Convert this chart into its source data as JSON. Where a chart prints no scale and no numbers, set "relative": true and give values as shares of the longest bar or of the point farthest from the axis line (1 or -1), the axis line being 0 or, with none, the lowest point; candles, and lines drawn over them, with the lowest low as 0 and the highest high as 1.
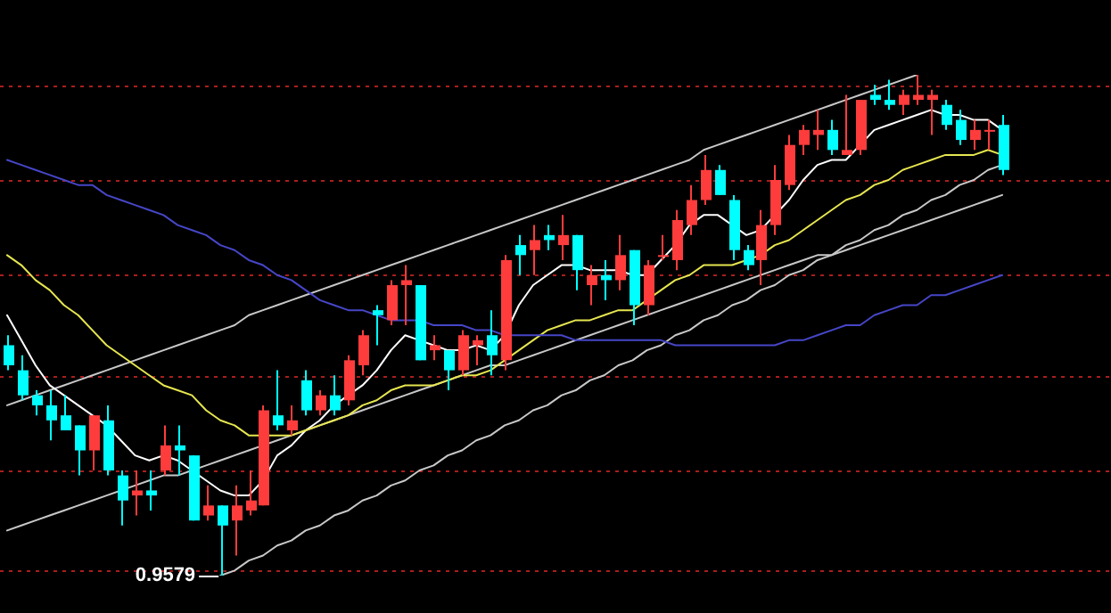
{
  "chart_data": [
    {
      "type": "line",
      "relative": true,
      "marker": "none",
      "ref_lines": [
        {
          "axis": "y",
          "value": 0.01,
          "color": "#aa1e1e",
          "line_style": "dotted"
        },
        {
          "axis": "y",
          "value": 0.21,
          "color": "#aa1e1e",
          "line_style": "dotted"
        },
        {
          "axis": "y",
          "value": 0.4,
          "color": "#aa1e1e",
          "line_style": "dotted"
        },
        {
          "axis": "y",
          "value": 0.6,
          "color": "#aa1e1e",
          "line_style": "dotted"
        },
        {
          "axis": "y",
          "value": 0.79,
          "color": "#aa1e1e",
          "line_style": "dotted"
        },
        {
          "axis": "y",
          "value": 0.98,
          "color": "#aa1e1e",
          "line_style": "dotted"
        }
      ],
      "categories": [
        null,
        null,
        null,
        null,
        null,
        null,
        null,
        null,
        null,
        null,
        null,
        null,
        null,
        null,
        null,
        null,
        null,
        null,
        null,
        null,
        null,
        null,
        null,
        null,
        null,
        null,
        null,
        null,
        null,
        null,
        null,
        null,
        null,
        null,
        null,
        null,
        null,
        null,
        null,
        null,
        null,
        null,
        null,
        null,
        null,
        null,
        null,
        null,
        null,
        null,
        null,
        null,
        null,
        null,
        null,
        null,
        null,
        null,
        null,
        null,
        null,
        null,
        null,
        null,
        null,
        null,
        null,
        null,
        null,
        null,
        null
      ],
      "series": [
        {
          "color": "#4646c8",
          "values": [
            0.83,
            0.82,
            0.81,
            0.8,
            0.79,
            0.78,
            0.78,
            0.76,
            0.75,
            0.74,
            0.73,
            0.72,
            0.7,
            0.69,
            0.68,
            0.66,
            0.65,
            0.63,
            0.62,
            0.6,
            0.59,
            0.57,
            0.55,
            0.54,
            0.53,
            0.53,
            0.52,
            0.51,
            0.51,
            0.51,
            0.5,
            0.5,
            0.5,
            0.49,
            0.49,
            0.48,
            0.48,
            0.48,
            0.48,
            0.48,
            0.47,
            0.47,
            0.47,
            0.47,
            0.47,
            0.47,
            0.47,
            0.46,
            0.46,
            0.46,
            0.46,
            0.46,
            0.46,
            0.46,
            0.46,
            0.47,
            0.47,
            0.48,
            0.49,
            0.5,
            0.5,
            0.52,
            0.53,
            0.54,
            0.54,
            0.56,
            0.56,
            0.57,
            0.58,
            0.59,
            0.6
          ]
        },
        {
          "color": "#e6e650",
          "values": [
            0.64,
            0.62,
            0.59,
            0.57,
            0.54,
            0.52,
            0.49,
            0.46,
            0.44,
            0.42,
            0.4,
            0.38,
            0.37,
            0.36,
            0.33,
            0.31,
            0.3,
            0.28,
            0.28,
            0.28,
            0.28,
            0.29,
            0.3,
            0.31,
            0.32,
            0.34,
            0.35,
            0.37,
            0.38,
            0.38,
            0.38,
            0.39,
            0.4,
            0.4,
            0.41,
            0.43,
            0.45,
            0.47,
            0.49,
            0.5,
            0.51,
            0.51,
            0.52,
            0.53,
            0.53,
            0.55,
            0.57,
            0.59,
            0.6,
            0.62,
            0.62,
            0.62,
            0.63,
            0.64,
            0.66,
            0.67,
            0.69,
            0.71,
            0.73,
            0.75,
            0.76,
            0.78,
            0.79,
            0.81,
            0.82,
            0.83,
            0.84,
            0.84,
            0.84,
            0.85,
            0.84
          ]
        },
        {
          "color": "#ffffff",
          "values": [
            0.52,
            0.47,
            0.42,
            0.38,
            0.36,
            0.34,
            0.32,
            0.3,
            0.27,
            0.24,
            0.23,
            0.24,
            0.23,
            0.21,
            0.19,
            0.17,
            0.16,
            0.16,
            0.19,
            0.24,
            0.26,
            0.29,
            0.31,
            0.34,
            0.36,
            0.38,
            0.41,
            0.45,
            0.48,
            0.47,
            0.46,
            0.45,
            0.45,
            0.46,
            0.45,
            0.48,
            0.54,
            0.58,
            0.6,
            0.62,
            0.62,
            0.61,
            0.61,
            0.61,
            0.6,
            0.6,
            0.63,
            0.66,
            0.7,
            0.72,
            0.72,
            0.7,
            0.68,
            0.69,
            0.72,
            0.75,
            0.79,
            0.82,
            0.83,
            0.83,
            0.86,
            0.89,
            0.9,
            0.91,
            0.92,
            0.93,
            0.92,
            0.92,
            0.91,
            0.91,
            0.89
          ]
        },
        {
          "color": "#c8c8c8",
          "values": [
            0.34,
            0.35,
            0.36,
            0.37,
            0.38,
            0.39,
            0.4,
            0.41,
            0.42,
            0.43,
            0.44,
            0.45,
            0.46,
            0.47,
            0.48,
            0.49,
            0.5,
            0.52,
            0.53,
            0.54,
            0.55,
            0.56,
            0.57,
            0.58,
            0.59,
            0.6,
            0.61,
            0.62,
            0.63,
            0.64,
            0.65,
            0.66,
            0.67,
            0.68,
            0.69,
            0.7,
            0.71,
            0.72,
            0.73,
            0.74,
            0.75,
            0.76,
            0.77,
            0.78,
            0.79,
            0.8,
            0.81,
            0.82,
            0.83,
            0.85,
            0.86,
            0.87,
            0.88,
            0.89,
            0.9,
            0.91,
            0.92,
            0.93,
            0.94,
            0.95,
            0.96,
            0.97,
            0.98,
            0.99,
            1,
            null,
            null,
            null,
            null,
            null,
            null
          ]
        },
        {
          "color": "#c8c8c8",
          "values": [
            0.09,
            0.1,
            0.11,
            0.12,
            0.13,
            0.14,
            0.15,
            0.16,
            0.17,
            0.18,
            0.19,
            0.2,
            0.2,
            0.21,
            0.22,
            0.23,
            0.24,
            0.25,
            0.26,
            0.27,
            0.28,
            0.29,
            0.3,
            0.31,
            0.32,
            0.33,
            0.34,
            0.35,
            0.36,
            0.37,
            0.38,
            0.39,
            0.4,
            0.41,
            0.42,
            0.42,
            0.43,
            0.44,
            0.45,
            0.46,
            0.47,
            0.48,
            0.49,
            0.5,
            0.51,
            0.52,
            0.53,
            0.54,
            0.55,
            0.56,
            0.57,
            0.58,
            0.59,
            0.6,
            0.61,
            0.62,
            0.63,
            0.64,
            0.64,
            0.65,
            0.66,
            0.67,
            0.68,
            0.69,
            0.7,
            0.71,
            0.72,
            0.73,
            0.74,
            0.75,
            0.76
          ]
        },
        {
          "color": "#c8c8c8",
          "values": [
            null,
            null,
            null,
            null,
            null,
            null,
            null,
            null,
            null,
            null,
            null,
            null,
            null,
            null,
            null,
            0,
            0.01,
            0.03,
            0.04,
            0.06,
            0.07,
            0.09,
            0.1,
            0.12,
            0.13,
            0.15,
            0.16,
            0.18,
            0.19,
            0.21,
            0.22,
            0.24,
            0.25,
            0.27,
            0.28,
            0.3,
            0.31,
            0.33,
            0.34,
            0.36,
            0.37,
            0.39,
            0.4,
            0.42,
            0.43,
            0.45,
            0.46,
            0.48,
            0.49,
            0.51,
            0.52,
            0.54,
            0.55,
            0.57,
            0.58,
            0.6,
            0.61,
            0.63,
            0.64,
            0.66,
            0.67,
            0.69,
            0.7,
            0.72,
            0.73,
            0.75,
            0.76,
            0.78,
            0.79,
            0.81,
            0.82
          ]
        }
      ]
    },
    {
      "type": "candlestick",
      "relative": true,
      "categories": [
        null,
        null,
        null,
        null,
        null,
        null,
        null,
        null,
        null,
        null,
        null,
        null,
        null,
        null,
        null,
        null,
        null,
        null,
        null,
        null,
        null,
        null,
        null,
        null,
        null,
        null,
        null,
        null,
        null,
        null,
        null,
        null,
        null,
        null,
        null,
        null,
        null,
        null,
        null,
        null,
        null,
        null,
        null,
        null,
        null,
        null,
        null,
        null,
        null,
        null,
        null,
        null,
        null,
        null,
        null,
        null,
        null,
        null,
        null,
        null,
        null,
        null,
        null,
        null,
        null,
        null,
        null,
        null,
        null,
        null,
        null
      ],
      "ohlc": [
        [
          0.46,
          0.48,
          0.41,
          0.42
        ],
        [
          0.41,
          0.44,
          0.35,
          0.36
        ],
        [
          0.36,
          0.37,
          0.32,
          0.34
        ],
        [
          0.34,
          0.37,
          0.27,
          0.31
        ],
        [
          0.32,
          0.36,
          0.29,
          0.29
        ],
        [
          0.3,
          0.3,
          0.2,
          0.25
        ],
        [
          0.25,
          0.32,
          0.21,
          0.32
        ],
        [
          0.31,
          0.34,
          0.2,
          0.21
        ],
        [
          0.2,
          0.21,
          0.1,
          0.15
        ],
        [
          0.16,
          0.21,
          0.12,
          0.17
        ],
        [
          0.17,
          0.21,
          0.13,
          0.16
        ],
        [
          0.21,
          0.3,
          0.2,
          0.26
        ],
        [
          0.26,
          0.3,
          0.2,
          0.25
        ],
        [
          0.24,
          0.24,
          0.11,
          0.11
        ],
        [
          0.12,
          0.18,
          0.11,
          0.14
        ],
        [
          0.14,
          0.14,
          0,
          0.1
        ],
        [
          0.11,
          0.18,
          0.04,
          0.14
        ],
        [
          0.13,
          0.21,
          0.12,
          0.15
        ],
        [
          0.14,
          0.34,
          0.14,
          0.33
        ],
        [
          0.32,
          0.41,
          0.29,
          0.3
        ],
        [
          0.29,
          0.34,
          0.28,
          0.31
        ],
        [
          0.39,
          0.41,
          0.32,
          0.33
        ],
        [
          0.33,
          0.37,
          0.32,
          0.36
        ],
        [
          0.36,
          0.4,
          0.32,
          0.33
        ],
        [
          0.35,
          0.44,
          0.34,
          0.43
        ],
        [
          0.42,
          0.49,
          0.4,
          0.48
        ],
        [
          0.53,
          0.54,
          0.46,
          0.52
        ],
        [
          0.51,
          0.59,
          0.5,
          0.58
        ],
        [
          0.58,
          0.62,
          0.5,
          0.59
        ],
        [
          0.58,
          0.58,
          0.43,
          0.43
        ],
        [
          0.45,
          0.48,
          0.43,
          0.46
        ],
        [
          0.45,
          0.45,
          0.37,
          0.41
        ],
        [
          0.41,
          0.49,
          0.4,
          0.48
        ],
        [
          0.46,
          0.48,
          0.42,
          0.47
        ],
        [
          0.48,
          0.53,
          0.4,
          0.44
        ],
        [
          0.43,
          0.64,
          0.41,
          0.63
        ],
        [
          0.66,
          0.68,
          0.6,
          0.64
        ],
        [
          0.65,
          0.7,
          0.6,
          0.67
        ],
        [
          0.68,
          0.7,
          0.65,
          0.67
        ],
        [
          0.66,
          0.72,
          0.63,
          0.68
        ],
        [
          0.68,
          0.68,
          0.57,
          0.61
        ],
        [
          0.58,
          0.62,
          0.54,
          0.6
        ],
        [
          0.6,
          0.63,
          0.55,
          0.59
        ],
        [
          0.59,
          0.68,
          0.57,
          0.64
        ],
        [
          0.65,
          0.65,
          0.5,
          0.54
        ],
        [
          0.54,
          0.63,
          0.52,
          0.62
        ],
        [
          0.64,
          0.68,
          0.63,
          0.64
        ],
        [
          0.63,
          0.73,
          0.61,
          0.71
        ],
        [
          0.7,
          0.78,
          0.68,
          0.75
        ],
        [
          0.75,
          0.84,
          0.74,
          0.81
        ],
        [
          0.81,
          0.82,
          0.76,
          0.76
        ],
        [
          0.75,
          0.76,
          0.63,
          0.65
        ],
        [
          0.65,
          0.66,
          0.61,
          0.62
        ],
        [
          0.63,
          0.73,
          0.58,
          0.7
        ],
        [
          0.7,
          0.82,
          0.68,
          0.79
        ],
        [
          0.78,
          0.88,
          0.77,
          0.86
        ],
        [
          0.86,
          0.9,
          0.84,
          0.89
        ],
        [
          0.88,
          0.93,
          0.85,
          0.89
        ],
        [
          0.89,
          0.91,
          0.84,
          0.85
        ],
        [
          0.84,
          0.96,
          0.84,
          0.85
        ],
        [
          0.85,
          0.95,
          0.84,
          0.95
        ],
        [
          0.96,
          0.98,
          0.94,
          0.95
        ],
        [
          0.95,
          0.99,
          0.93,
          0.94
        ],
        [
          0.94,
          0.97,
          0.92,
          0.96
        ],
        [
          0.95,
          1,
          0.94,
          0.96
        ],
        [
          0.95,
          0.97,
          0.88,
          0.96
        ],
        [
          0.94,
          0.95,
          0.89,
          0.9
        ],
        [
          0.91,
          0.93,
          0.86,
          0.87
        ],
        [
          0.87,
          0.91,
          0.85,
          0.89
        ],
        [
          0.89,
          0.91,
          0.85,
          0.89
        ],
        [
          0.9,
          0.92,
          0.8,
          0.81
        ]
      ],
      "colors": [
        "#00ffff",
        "#00ffff",
        "#00ffff",
        "#00ffff",
        "#00ffff",
        "#00ffff",
        "#ff3c3c",
        "#00ffff",
        "#00ffff",
        "#ff3c3c",
        "#00ffff",
        "#ff3c3c",
        "#00ffff",
        "#00ffff",
        "#ff3c3c",
        "#00ffff",
        "#ff3c3c",
        "#ff3c3c",
        "#ff3c3c",
        "#00ffff",
        "#ff3c3c",
        "#00ffff",
        "#ff3c3c",
        "#00ffff",
        "#ff3c3c",
        "#ff3c3c",
        "#00ffff",
        "#ff3c3c",
        "#ff3c3c",
        "#00ffff",
        "#ff3c3c",
        "#00ffff",
        "#ff3c3c",
        "#ff3c3c",
        "#00ffff",
        "#ff3c3c",
        "#00ffff",
        "#ff3c3c",
        "#00ffff",
        "#ff3c3c",
        "#00ffff",
        "#ff3c3c",
        "#00ffff",
        "#ff3c3c",
        "#00ffff",
        "#ff3c3c",
        "#ff3c3c",
        "#ff3c3c",
        "#ff3c3c",
        "#ff3c3c",
        "#00ffff",
        "#00ffff",
        "#00ffff",
        "#ff3c3c",
        "#ff3c3c",
        "#ff3c3c",
        "#ff3c3c",
        "#ff3c3c",
        "#00ffff",
        "#ff3c3c",
        "#ff3c3c",
        "#00ffff",
        "#00ffff",
        "#ff3c3c",
        "#ff3c3c",
        "#ff3c3c",
        "#00ffff",
        "#00ffff",
        "#ff3c3c",
        "#ff3c3c",
        "#00ffff"
      ],
      "annotations": [
        "0.9579"
      ]
    }
  ]
}
